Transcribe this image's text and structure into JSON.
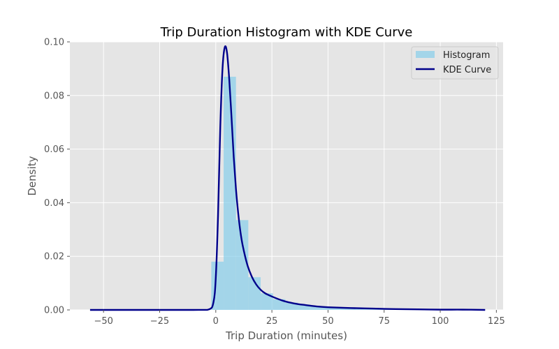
{
  "chart_data": {
    "type": "bar",
    "title": "Trip Duration Histogram with KDE Curve",
    "xlabel": "Trip Duration (minutes)",
    "ylabel": "Density",
    "xlim": [
      -65,
      128
    ],
    "ylim": [
      0,
      0.1
    ],
    "grid": true,
    "legend_placement": "top-right",
    "xticks": [
      -50,
      -25,
      0,
      25,
      50,
      75,
      100,
      125
    ],
    "xtick_labels": [
      "−50",
      "−25",
      "0",
      "25",
      "50",
      "75",
      "100",
      "125"
    ],
    "yticks": [
      0,
      0.02,
      0.04,
      0.06,
      0.08,
      0.1
    ],
    "ytick_labels": [
      "0.00",
      "0.02",
      "0.04",
      "0.06",
      "0.08",
      "0.10"
    ],
    "series": [
      {
        "name": "Histogram",
        "kind": "histogram",
        "color": "#87ceeb",
        "bins": [
          {
            "x0": -2,
            "x1": 3.5,
            "density": 0.018
          },
          {
            "x0": 3.5,
            "x1": 9,
            "density": 0.087
          },
          {
            "x0": 9,
            "x1": 14.5,
            "density": 0.0335
          },
          {
            "x0": 14.5,
            "x1": 20,
            "density": 0.0122
          },
          {
            "x0": 20,
            "x1": 25.5,
            "density": 0.0062
          },
          {
            "x0": 25.5,
            "x1": 31,
            "density": 0.004
          },
          {
            "x0": 31,
            "x1": 36.5,
            "density": 0.0027
          },
          {
            "x0": 36.5,
            "x1": 42,
            "density": 0.002
          },
          {
            "x0": 42,
            "x1": 47.5,
            "density": 0.0014
          },
          {
            "x0": 47.5,
            "x1": 53,
            "density": 0.001
          },
          {
            "x0": 53,
            "x1": 58.5,
            "density": 0.0008
          },
          {
            "x0": 58.5,
            "x1": 64,
            "density": 0.0006
          },
          {
            "x0": 64,
            "x1": 69.5,
            "density": 0.0005
          },
          {
            "x0": 69.5,
            "x1": 75,
            "density": 0.0004
          },
          {
            "x0": 75,
            "x1": 80.5,
            "density": 0.0003
          },
          {
            "x0": 80.5,
            "x1": 86,
            "density": 0.0003
          },
          {
            "x0": 86,
            "x1": 91.5,
            "density": 0.0002
          },
          {
            "x0": 91.5,
            "x1": 97,
            "density": 0.0002
          },
          {
            "x0": 97,
            "x1": 102.5,
            "density": 0.0001
          },
          {
            "x0": 102.5,
            "x1": 108,
            "density": 0.0001
          },
          {
            "x0": 108,
            "x1": 113.5,
            "density": 0.0001
          },
          {
            "x0": 113.5,
            "x1": 119,
            "density": 0.0001
          }
        ]
      },
      {
        "name": "KDE Curve",
        "kind": "line",
        "color": "#00008b",
        "x": [
          -56,
          -10,
          -3,
          -1,
          0,
          1,
          2,
          3,
          4,
          5,
          6,
          7,
          8,
          9,
          10,
          11,
          12,
          14,
          16,
          18,
          20,
          22,
          25,
          30,
          35,
          40,
          45,
          50,
          60,
          70,
          80,
          90,
          100,
          110,
          120
        ],
        "y": [
          0,
          0,
          0.0002,
          0.003,
          0.012,
          0.035,
          0.068,
          0.09,
          0.098,
          0.096,
          0.086,
          0.072,
          0.057,
          0.045,
          0.036,
          0.029,
          0.024,
          0.017,
          0.0125,
          0.0095,
          0.0075,
          0.0062,
          0.005,
          0.0034,
          0.0024,
          0.0018,
          0.0013,
          0.001,
          0.0007,
          0.0005,
          0.0003,
          0.0002,
          0.0001,
          0.0001,
          0
        ]
      }
    ]
  }
}
